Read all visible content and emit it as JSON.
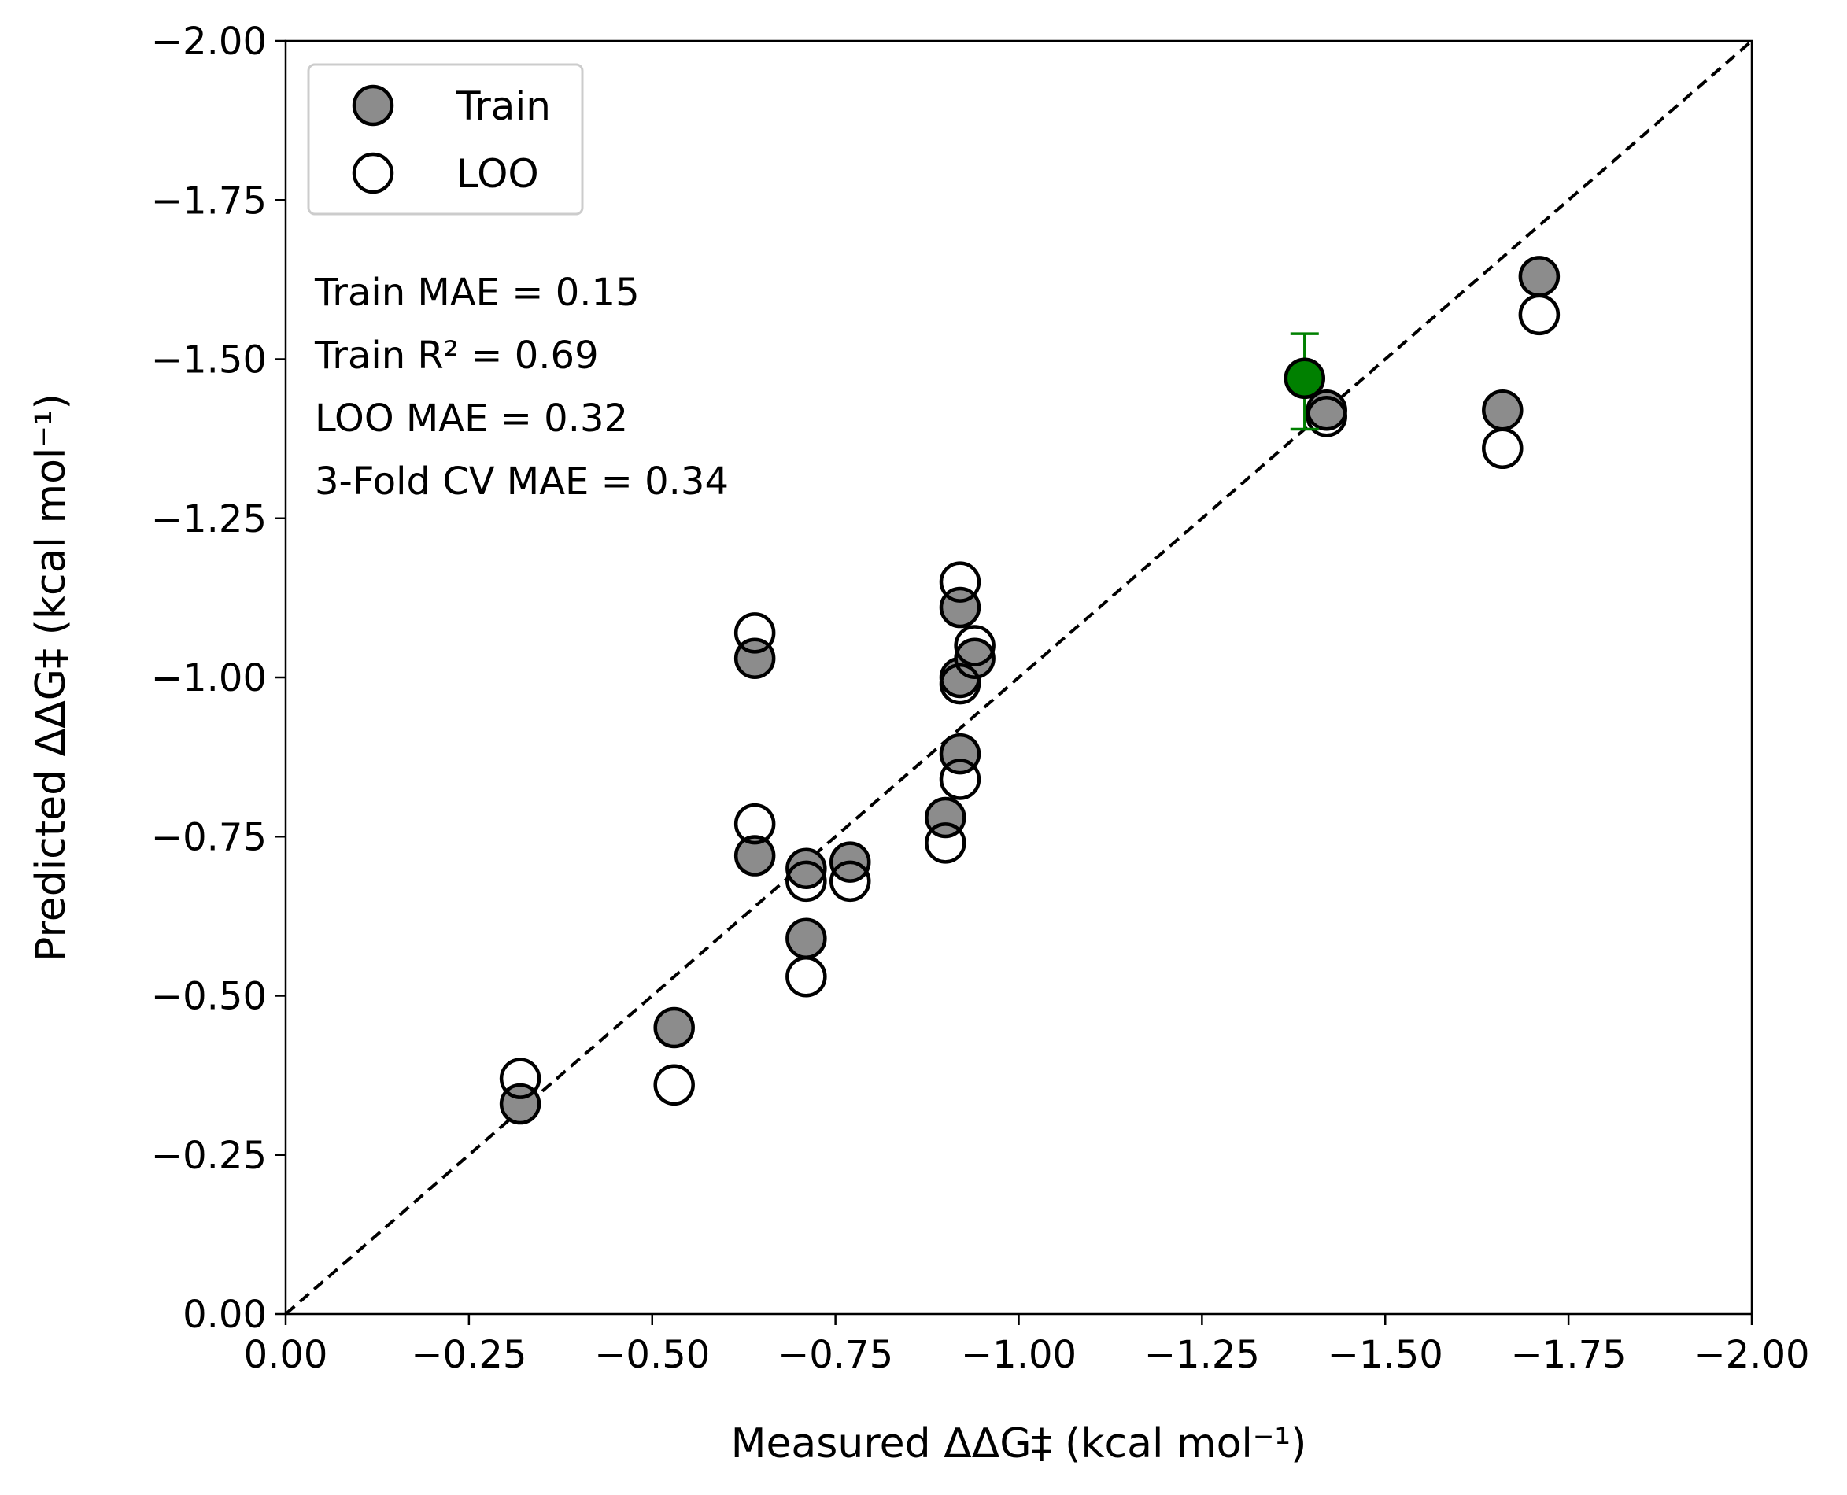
{
  "chart_data": {
    "type": "scatter",
    "title": "",
    "xlabel": "Measured ΔΔG‡ (kcal mol⁻¹)",
    "ylabel": "Predicted ΔΔG‡ (kcal mol⁻¹)",
    "xlim": [
      0.0,
      -2.0
    ],
    "ylim": [
      0.0,
      -2.0
    ],
    "x_ticks": [
      "0.00",
      "−0.25",
      "−0.50",
      "−0.75",
      "−1.00",
      "−1.25",
      "−1.50",
      "−1.75",
      "−2.00"
    ],
    "y_ticks": [
      "0.00",
      "−0.25",
      "−0.50",
      "−0.75",
      "−1.00",
      "−1.25",
      "−1.50",
      "−1.75",
      "−2.00"
    ],
    "reference_line": {
      "type": "y=x",
      "style": "dashed",
      "color": "#000000"
    },
    "legend": {
      "placement": "top-left",
      "entries": [
        {
          "label": "Train",
          "marker": "filled-circle",
          "color": "#8c8c8c"
        },
        {
          "label": "LOO",
          "marker": "open-circle",
          "color": "#ffffff"
        }
      ]
    },
    "annotations": [
      "Train MAE = 0.15",
      "Train R² = 0.69",
      "LOO MAE = 0.32",
      "3-Fold CV MAE = 0.34"
    ],
    "series": [
      {
        "name": "Train",
        "color": "#8c8c8c",
        "points": [
          {
            "x": -0.32,
            "y": -0.33
          },
          {
            "x": -0.53,
            "y": -0.45
          },
          {
            "x": -0.64,
            "y": -1.03
          },
          {
            "x": -0.64,
            "y": -0.72
          },
          {
            "x": -0.71,
            "y": -0.7
          },
          {
            "x": -0.71,
            "y": -0.59
          },
          {
            "x": -0.77,
            "y": -0.71
          },
          {
            "x": -0.9,
            "y": -0.78
          },
          {
            "x": -0.92,
            "y": -0.88
          },
          {
            "x": -0.92,
            "y": -1.0
          },
          {
            "x": -0.92,
            "y": -1.11
          },
          {
            "x": -0.94,
            "y": -1.03
          },
          {
            "x": -1.42,
            "y": -1.42
          },
          {
            "x": -1.66,
            "y": -1.42
          },
          {
            "x": -1.71,
            "y": -1.63
          }
        ]
      },
      {
        "name": "LOO",
        "color": "#ffffff",
        "points": [
          {
            "x": -0.32,
            "y": -0.37
          },
          {
            "x": -0.53,
            "y": -0.36
          },
          {
            "x": -0.64,
            "y": -1.07
          },
          {
            "x": -0.64,
            "y": -0.77
          },
          {
            "x": -0.71,
            "y": -0.68
          },
          {
            "x": -0.71,
            "y": -0.53
          },
          {
            "x": -0.77,
            "y": -0.68
          },
          {
            "x": -0.9,
            "y": -0.74
          },
          {
            "x": -0.92,
            "y": -0.84
          },
          {
            "x": -0.92,
            "y": -0.99
          },
          {
            "x": -0.92,
            "y": -1.15
          },
          {
            "x": -0.94,
            "y": -1.05
          },
          {
            "x": -1.42,
            "y": -1.41
          },
          {
            "x": -1.66,
            "y": -1.36
          },
          {
            "x": -1.71,
            "y": -1.57
          }
        ]
      },
      {
        "color": "#008000",
        "points": [
          {
            "x": -1.39,
            "y": -1.47,
            "y_err_low": -1.39,
            "y_err_high": -1.54
          }
        ]
      }
    ]
  }
}
